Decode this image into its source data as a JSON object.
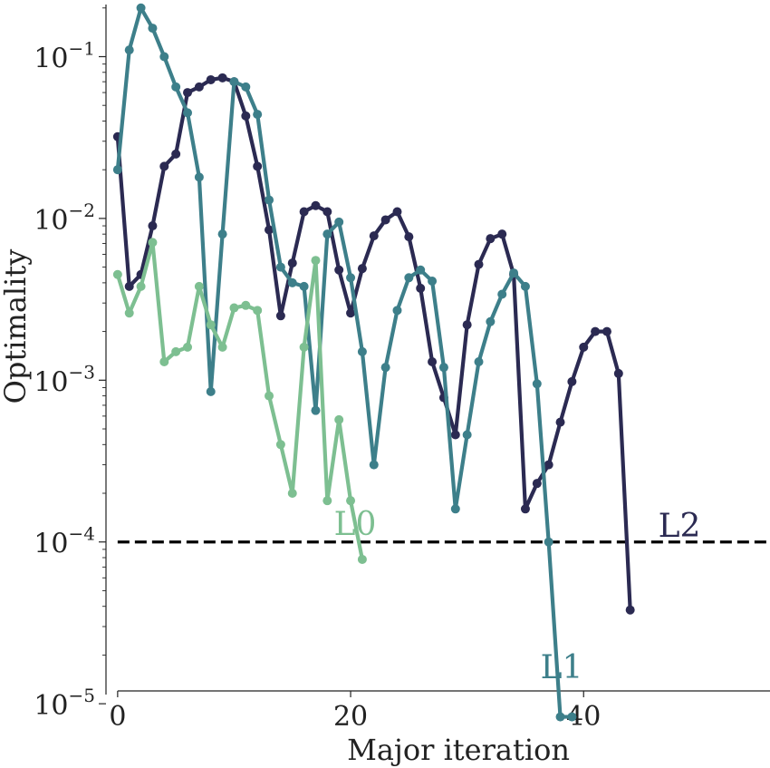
{
  "chart_data": {
    "type": "line",
    "xlabel": "Major iteration",
    "ylabel": "Optimality",
    "xlim": [
      -1,
      56
    ],
    "ylim": [
      1.2e-05,
      0.21
    ],
    "yscale": "log",
    "xticks": [
      "0",
      "20",
      "40"
    ],
    "xtick_values": [
      0,
      20,
      40
    ],
    "yticks": [
      {
        "base": "10",
        "exp": "−1",
        "value": 0.1
      },
      {
        "base": "10",
        "exp": "−2",
        "value": 0.01
      },
      {
        "base": "10",
        "exp": "−3",
        "value": 0.001
      },
      {
        "base": "10",
        "exp": "−4",
        "value": 0.0001
      },
      {
        "base": "10",
        "exp": "−5",
        "value": 1e-05
      }
    ],
    "threshold": 0.0001,
    "series": [
      {
        "name": "L0",
        "color": "#7dbf91",
        "x": [
          0,
          1,
          2,
          3,
          4,
          5,
          6,
          7,
          8,
          9,
          10,
          11,
          12,
          13,
          14,
          15,
          16,
          17,
          18,
          19,
          20,
          21
        ],
        "y": [
          0.0045,
          0.0026,
          0.0038,
          0.0071,
          0.0013,
          0.0015,
          0.0016,
          0.0038,
          0.0022,
          0.0016,
          0.0028,
          0.0029,
          0.0027,
          0.0008,
          0.0004,
          0.0002,
          0.0016,
          0.0055,
          0.00018,
          0.00057,
          0.00018,
          7.8e-05
        ]
      },
      {
        "name": "L1",
        "color": "#3d7f8a",
        "x": [
          0,
          1,
          2,
          3,
          4,
          5,
          6,
          7,
          8,
          9,
          10,
          11,
          12,
          13,
          14,
          15,
          16,
          17,
          18,
          19,
          20,
          21,
          22,
          23,
          24,
          25,
          26,
          27,
          28,
          29,
          30,
          31,
          32,
          33,
          34,
          35,
          36,
          37,
          38,
          39
        ],
        "y": [
          0.02,
          0.11,
          0.2,
          0.15,
          0.1,
          0.065,
          0.045,
          0.018,
          0.00085,
          0.008,
          0.07,
          0.065,
          0.044,
          0.013,
          0.005,
          0.004,
          0.0038,
          0.00065,
          0.008,
          0.0095,
          0.0043,
          0.0015,
          0.0003,
          0.0012,
          0.0027,
          0.0043,
          0.0048,
          0.0041,
          0.0012,
          0.00016,
          0.00046,
          0.0013,
          0.0023,
          0.0034,
          0.0046,
          0.0038,
          0.00095,
          0.0001,
          8.3e-06,
          8.3e-06
        ]
      },
      {
        "name": "L2",
        "color": "#2b2a52",
        "x": [
          0,
          1,
          2,
          3,
          4,
          5,
          6,
          7,
          8,
          9,
          10,
          11,
          12,
          13,
          14,
          15,
          16,
          17,
          18,
          19,
          20,
          21,
          22,
          23,
          24,
          25,
          26,
          27,
          28,
          29,
          30,
          31,
          32,
          33,
          34,
          35,
          36,
          37,
          38,
          39,
          40,
          41,
          42,
          43,
          44
        ],
        "y": [
          0.032,
          0.0038,
          0.0045,
          0.009,
          0.021,
          0.025,
          0.06,
          0.065,
          0.072,
          0.074,
          0.07,
          0.043,
          0.021,
          0.0085,
          0.0025,
          0.0053,
          0.011,
          0.012,
          0.011,
          0.0048,
          0.0026,
          0.0049,
          0.0078,
          0.0098,
          0.011,
          0.0077,
          0.0037,
          0.0013,
          0.00078,
          0.00046,
          0.0022,
          0.0052,
          0.0075,
          0.008,
          0.0045,
          0.00016,
          0.00023,
          0.0003,
          0.00055,
          0.00098,
          0.0016,
          0.002,
          0.002,
          0.0011,
          3.8e-05
        ]
      }
    ]
  }
}
